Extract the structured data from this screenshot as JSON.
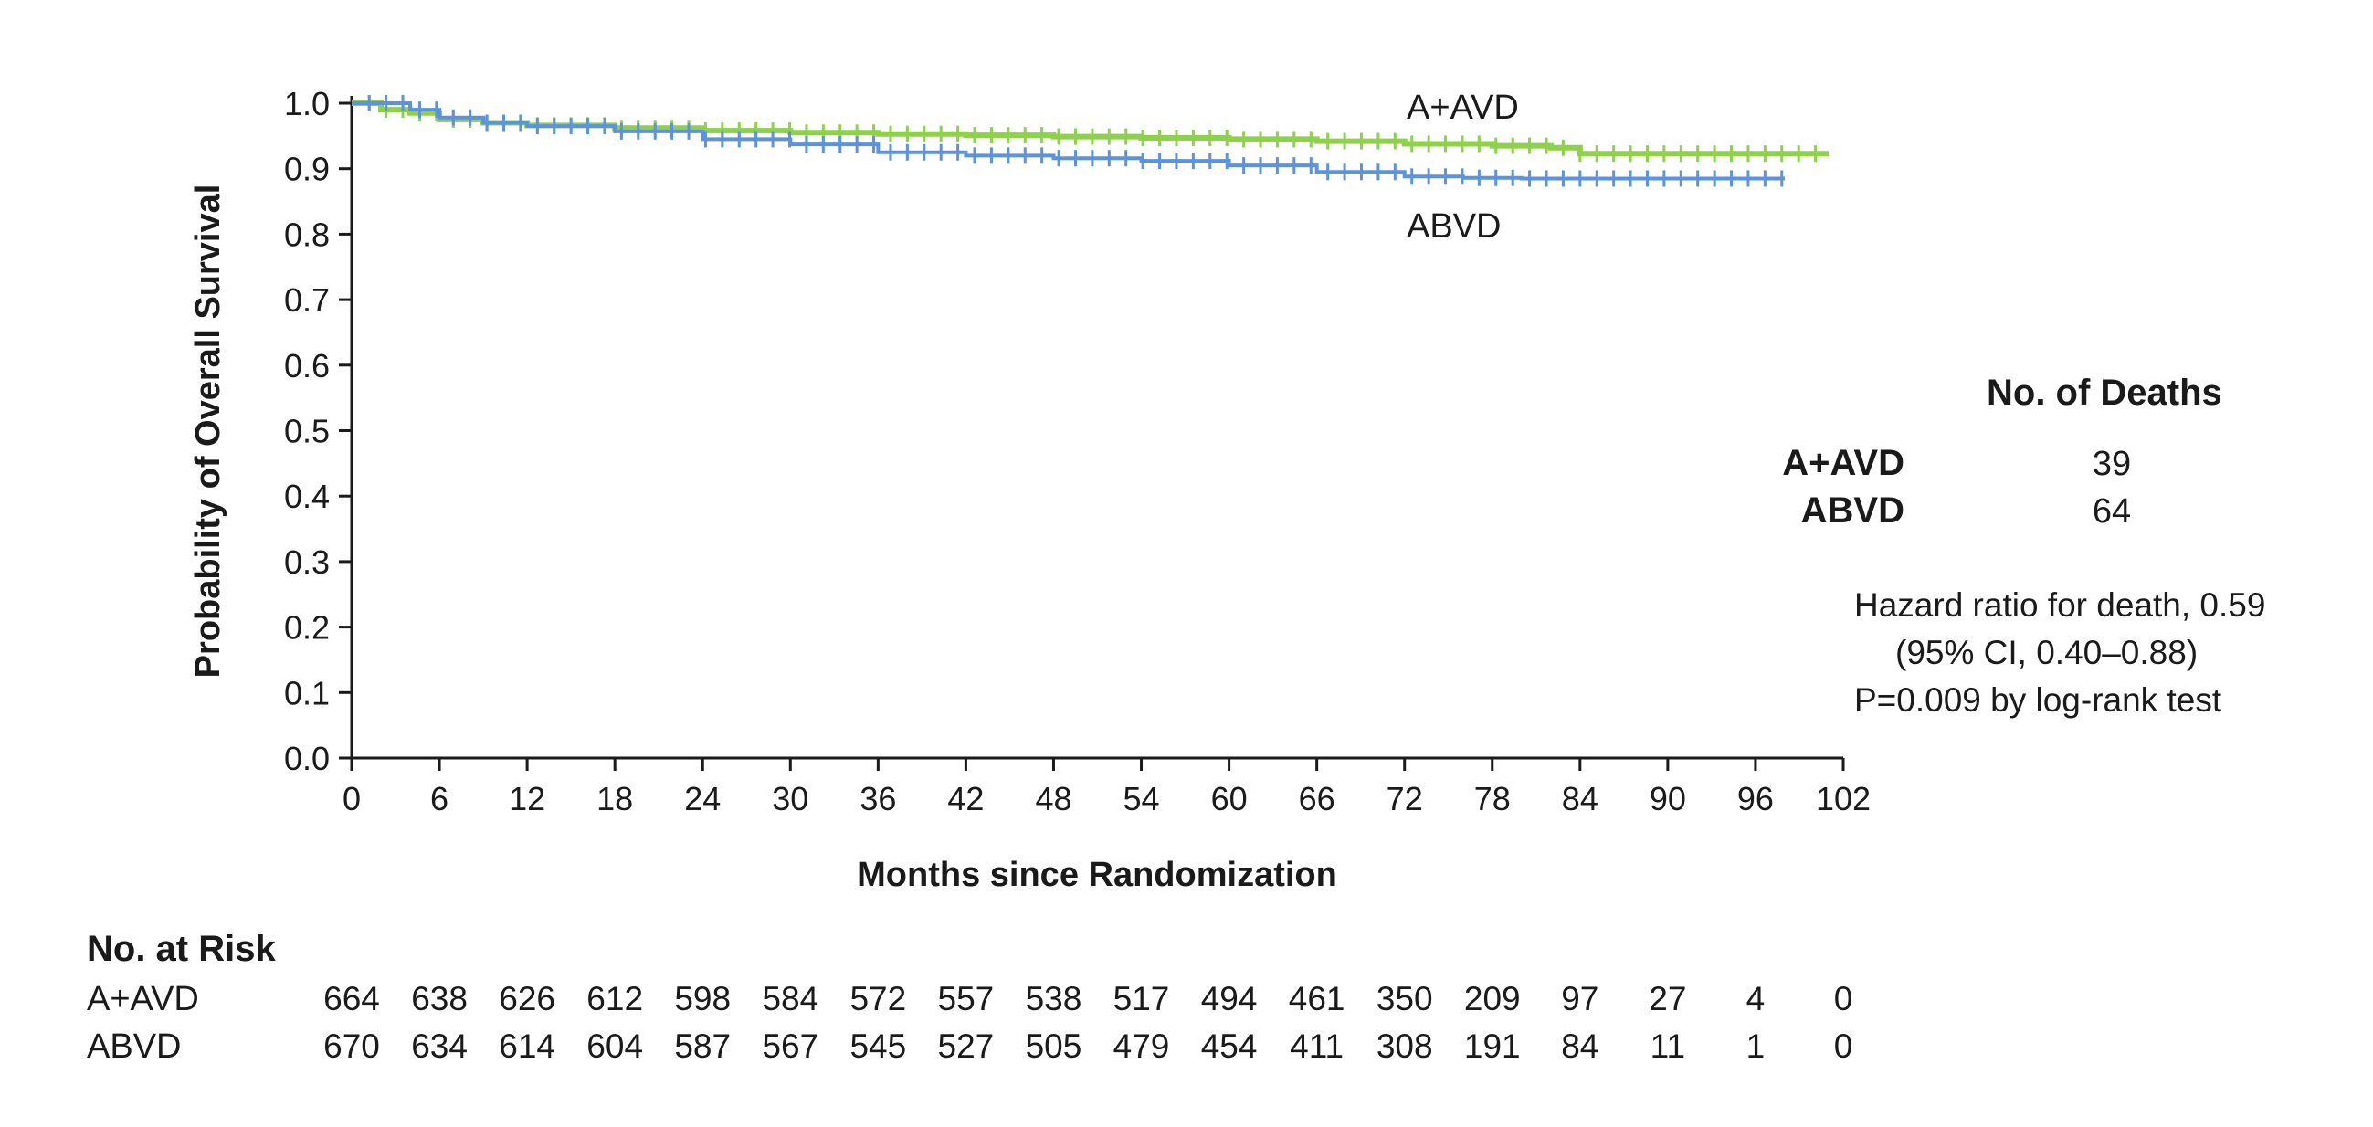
{
  "chart_data": {
    "type": "line",
    "subtype": "kaplan-meier",
    "xlabel": "Months since Randomization",
    "ylabel": "Probability of Overall Survival",
    "xlim": [
      0,
      102
    ],
    "ylim": [
      0.0,
      1.0
    ],
    "x_ticks": [
      0,
      6,
      12,
      18,
      24,
      30,
      36,
      42,
      48,
      54,
      60,
      66,
      72,
      78,
      84,
      90,
      96,
      102
    ],
    "y_ticks": [
      "0.0",
      "0.1",
      "0.2",
      "0.3",
      "0.4",
      "0.5",
      "0.6",
      "0.7",
      "0.8",
      "0.9",
      "1.0"
    ],
    "grid": false,
    "series": [
      {
        "name": "A+AVD",
        "color": "#8ed14b",
        "x": [
          0,
          2,
          4,
          6,
          9,
          12,
          18,
          24,
          30,
          36,
          42,
          48,
          54,
          60,
          66,
          72,
          78,
          82,
          84,
          90,
          96,
          101
        ],
        "y": [
          1.0,
          0.99,
          0.985,
          0.975,
          0.97,
          0.966,
          0.962,
          0.958,
          0.955,
          0.953,
          0.951,
          0.949,
          0.947,
          0.945,
          0.942,
          0.938,
          0.935,
          0.932,
          0.923,
          0.923,
          0.923,
          0.923
        ]
      },
      {
        "name": "ABVD",
        "color": "#5b93e0",
        "x": [
          0,
          2,
          4,
          6,
          9,
          12,
          18,
          24,
          30,
          36,
          42,
          48,
          54,
          60,
          66,
          72,
          76,
          80,
          84,
          90,
          98
        ],
        "y": [
          1.0,
          1.0,
          0.99,
          0.978,
          0.97,
          0.965,
          0.957,
          0.945,
          0.937,
          0.925,
          0.92,
          0.916,
          0.912,
          0.905,
          0.895,
          0.888,
          0.886,
          0.885,
          0.885,
          0.885,
          0.885
        ]
      }
    ]
  },
  "deaths_panel": {
    "title": "No. of Deaths",
    "rows": [
      {
        "label": "A+AVD",
        "value": "39"
      },
      {
        "label": "ABVD",
        "value": "64"
      }
    ]
  },
  "stats": {
    "line1": "Hazard ratio for death, 0.59",
    "line2": "(95% CI, 0.40–0.88)",
    "line3": "P=0.009 by log-rank test"
  },
  "risk_table": {
    "title": "No. at Risk",
    "rows": [
      {
        "label": "A+AVD",
        "values": [
          "664",
          "638",
          "626",
          "612",
          "598",
          "584",
          "572",
          "557",
          "538",
          "517",
          "494",
          "461",
          "350",
          "209",
          "97",
          "27",
          "4",
          "0"
        ]
      },
      {
        "label": "ABVD",
        "values": [
          "670",
          "634",
          "614",
          "604",
          "587",
          "567",
          "545",
          "527",
          "505",
          "479",
          "454",
          "411",
          "308",
          "191",
          "84",
          "11",
          "1",
          "0"
        ]
      }
    ]
  }
}
